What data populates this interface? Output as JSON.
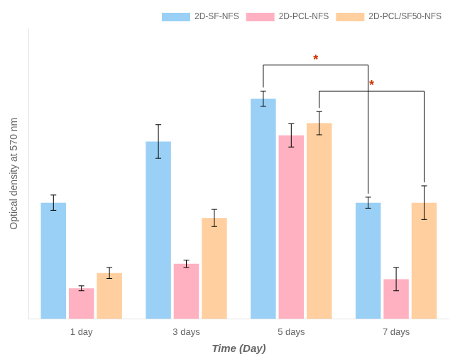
{
  "chart_data": {
    "type": "bar",
    "categories": [
      "1 day",
      "3 days",
      "5 days",
      "7 days"
    ],
    "series": [
      {
        "name": "2D-SF-NFS",
        "values": [
          0.38,
          0.58,
          0.72,
          0.38
        ],
        "errors": [
          0.025,
          0.055,
          0.025,
          0.018
        ]
      },
      {
        "name": "2D-PCL-NFS",
        "values": [
          0.1,
          0.18,
          0.6,
          0.13
        ],
        "errors": [
          0.008,
          0.012,
          0.038,
          0.038
        ]
      },
      {
        "name": "2D-PCL/SF50-NFS",
        "values": [
          0.15,
          0.33,
          0.64,
          0.38
        ],
        "errors": [
          0.018,
          0.028,
          0.038,
          0.055
        ]
      }
    ],
    "xlabel": "Time (Day)",
    "ylabel": "Optical density at 570 nm",
    "ylim": [
      0,
      0.95
    ],
    "tick_labels": "x",
    "grid": false,
    "legend": "upper right",
    "annotations": [
      {
        "text": "*",
        "color": "#cc3300",
        "series": "2D-SF-NFS",
        "categories": [
          "5 days",
          "7 days"
        ],
        "y": 0.83
      },
      {
        "text": "*",
        "color": "#cc3300",
        "series": "2D-PCL/SF50-NFS",
        "categories": [
          "5 days",
          "7 days"
        ],
        "y": 0.745
      }
    ]
  }
}
